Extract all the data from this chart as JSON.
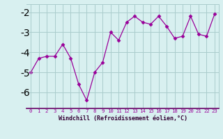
{
  "x": [
    0,
    1,
    2,
    3,
    4,
    5,
    6,
    7,
    8,
    9,
    10,
    11,
    12,
    13,
    14,
    15,
    16,
    17,
    18,
    19,
    20,
    21,
    22,
    23
  ],
  "y": [
    -5.0,
    -4.3,
    -4.2,
    -4.2,
    -3.6,
    -4.3,
    -5.6,
    -6.4,
    -5.0,
    -4.5,
    -3.0,
    -3.4,
    -2.5,
    -2.2,
    -2.5,
    -2.6,
    -2.2,
    -2.7,
    -3.3,
    -3.2,
    -2.2,
    -3.1,
    -3.2,
    -2.1
  ],
  "line_color": "#990099",
  "marker": "D",
  "marker_size": 2.5,
  "bg_color": "#d8f0f0",
  "grid_color": "#aacccc",
  "xlabel": "Windchill (Refroidissement éolien,°C)",
  "xlabel_color": "#330033",
  "tick_color": "#990099",
  "axis_line_color": "#660066",
  "xlim": [
    -0.5,
    23.5
  ],
  "ylim": [
    -6.8,
    -1.6
  ],
  "yticks": [
    -6,
    -5,
    -4,
    -3,
    -2
  ],
  "xticks": [
    0,
    1,
    2,
    3,
    4,
    5,
    6,
    7,
    8,
    9,
    10,
    11,
    12,
    13,
    14,
    15,
    16,
    17,
    18,
    19,
    20,
    21,
    22,
    23
  ]
}
